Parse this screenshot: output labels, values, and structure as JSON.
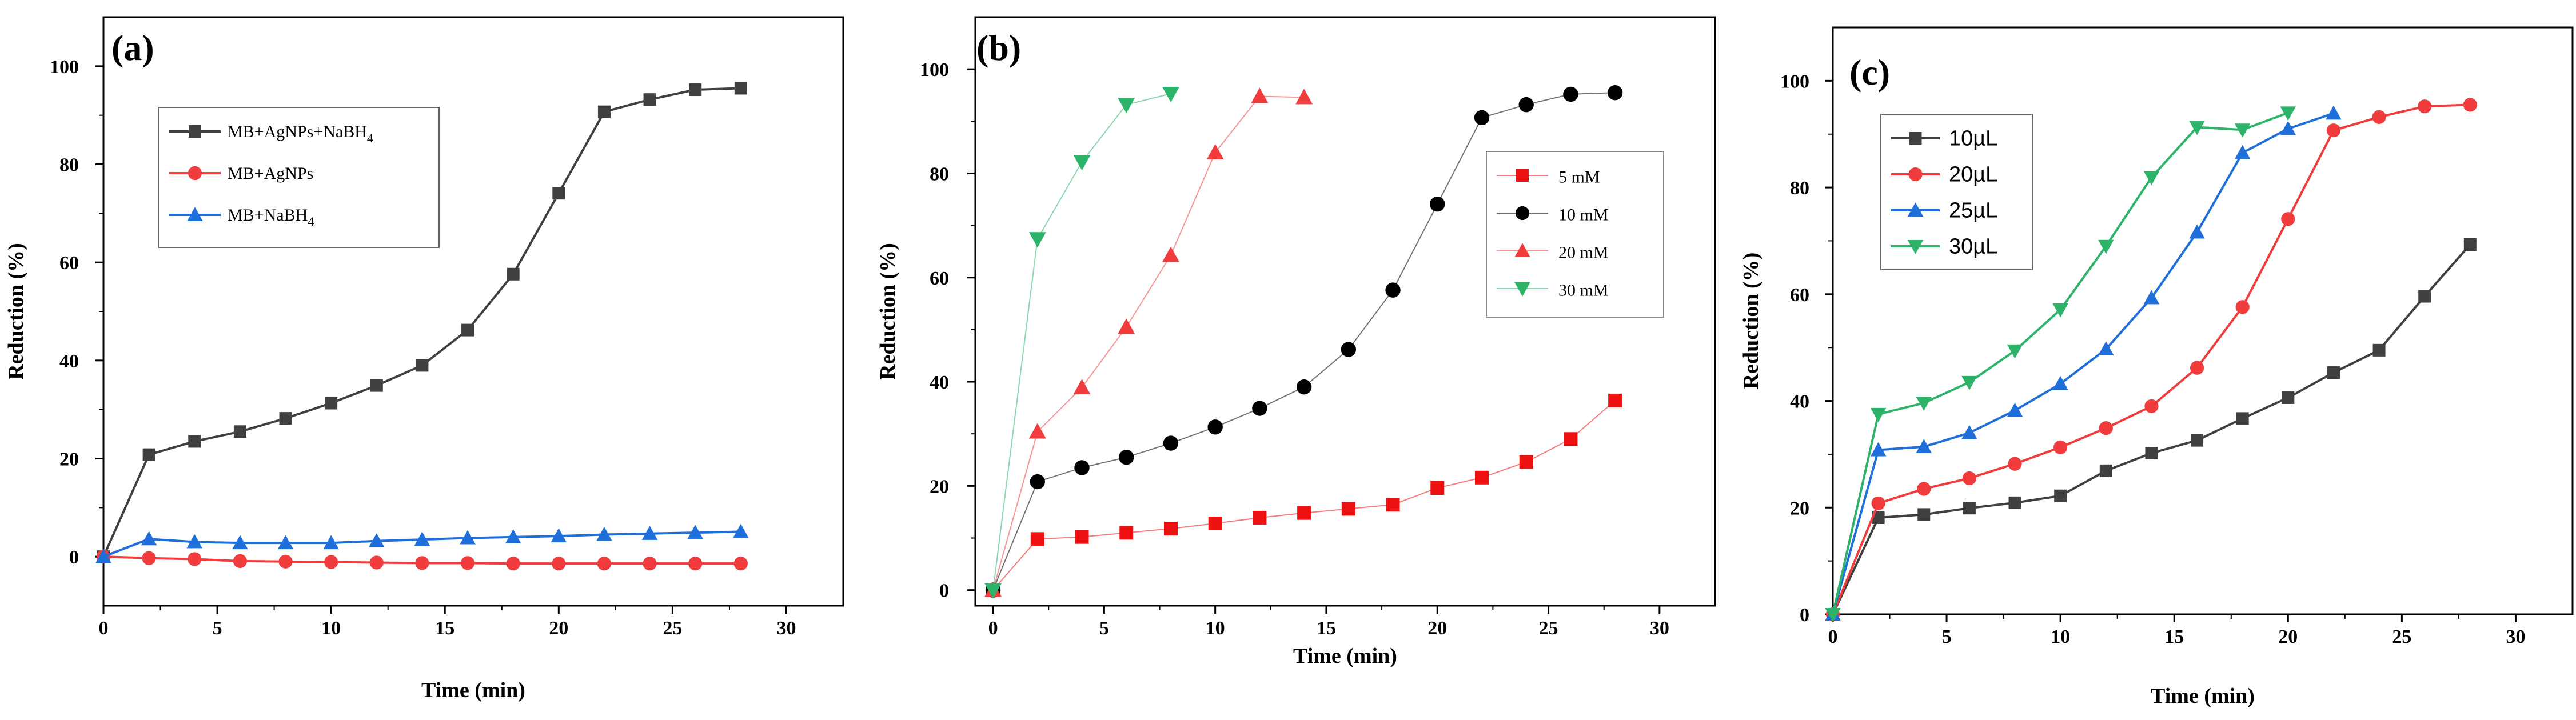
{
  "chart_data": [
    {
      "panel": "(a)",
      "type": "line",
      "xlabel": "Time (min)",
      "ylabel": "Reduction (%)",
      "xlim": [
        0,
        32.5
      ],
      "ylim": [
        -10,
        110
      ],
      "xticks": [
        0,
        5,
        10,
        15,
        20,
        25,
        30
      ],
      "yticks": [
        0,
        20,
        40,
        60,
        80,
        100
      ],
      "legend_position": "upper-left",
      "series": [
        {
          "name": "MB+AgNPs+NaBH",
          "subscript": "4",
          "color": "#404040",
          "marker": "square",
          "x": [
            0,
            2,
            4,
            6,
            8,
            10,
            12,
            14,
            16,
            18,
            20,
            22,
            24,
            26,
            28
          ],
          "y": [
            0,
            20.8,
            23.5,
            25.5,
            28.2,
            31.3,
            34.9,
            39.0,
            46.2,
            57.6,
            74.1,
            90.7,
            93.2,
            95.2,
            95.5
          ]
        },
        {
          "name": "MB+AgNPs",
          "subscript": "",
          "color": "#f03c3c",
          "marker": "circle",
          "x": [
            0,
            2,
            4,
            6,
            8,
            10,
            12,
            14,
            16,
            18,
            20,
            22,
            24,
            26,
            28
          ],
          "y": [
            0,
            -0.3,
            -0.5,
            -0.9,
            -1.0,
            -1.1,
            -1.2,
            -1.3,
            -1.3,
            -1.4,
            -1.4,
            -1.4,
            -1.4,
            -1.4,
            -1.4
          ]
        },
        {
          "name": "MB+NaBH",
          "subscript": "4",
          "color": "#1f6fdb",
          "marker": "triangle-up",
          "x": [
            0,
            2,
            4,
            6,
            8,
            10,
            12,
            14,
            16,
            18,
            20,
            22,
            24,
            26,
            28
          ],
          "y": [
            0,
            3.6,
            3.0,
            2.8,
            2.8,
            2.8,
            3.2,
            3.5,
            3.8,
            4.0,
            4.2,
            4.5,
            4.7,
            4.9,
            5.1
          ]
        }
      ]
    },
    {
      "panel": "(b)",
      "type": "line",
      "xlabel": "Time (min)",
      "ylabel": "Reduction (%)",
      "xlim": [
        -0.8,
        32.5
      ],
      "ylim": [
        -3,
        110
      ],
      "xticks": [
        0,
        5,
        10,
        15,
        20,
        25,
        30
      ],
      "yticks": [
        0,
        20,
        40,
        60,
        80,
        100
      ],
      "legend_position": "right",
      "series": [
        {
          "name": "5 mM",
          "color": "#ee1111",
          "marker": "square",
          "x": [
            0,
            2,
            4,
            6,
            8,
            10,
            12,
            14,
            16,
            18,
            20,
            22,
            24,
            26,
            28
          ],
          "y": [
            0,
            9.8,
            10.2,
            11.0,
            11.8,
            12.8,
            13.9,
            14.8,
            15.6,
            16.4,
            19.6,
            21.6,
            24.6,
            29.0,
            36.4
          ]
        },
        {
          "name": "10 mM",
          "color": "#000000",
          "marker": "circle",
          "x": [
            0,
            2,
            4,
            6,
            8,
            10,
            12,
            14,
            16,
            18,
            20,
            22,
            24,
            26,
            28
          ],
          "y": [
            0,
            20.8,
            23.5,
            25.5,
            28.2,
            31.3,
            34.9,
            39.0,
            46.2,
            57.6,
            74.1,
            90.7,
            93.2,
            95.2,
            95.5
          ]
        },
        {
          "name": "20 mM",
          "color": "#f03c3c",
          "marker": "triangle-up",
          "x": [
            0,
            2,
            4,
            6,
            8,
            10,
            12,
            14
          ],
          "y": [
            0,
            30.4,
            38.9,
            50.5,
            64.3,
            84.0,
            94.8,
            94.6
          ]
        },
        {
          "name": "30 mM",
          "color": "#2db36a",
          "marker": "triangle-down",
          "x": [
            0,
            2,
            4,
            6,
            8
          ],
          "y": [
            0,
            67.4,
            82.2,
            93.2,
            95.3
          ]
        }
      ]
    },
    {
      "panel": "(c)",
      "type": "line",
      "xlabel": "Time (min)",
      "ylabel": "Reduction (%)",
      "xlim": [
        0,
        32.5
      ],
      "ylim": [
        0,
        110
      ],
      "xticks": [
        0,
        5,
        10,
        15,
        20,
        25,
        30
      ],
      "yticks": [
        0,
        20,
        40,
        60,
        80,
        100
      ],
      "legend_position": "upper-left",
      "series": [
        {
          "name": "10µL",
          "color": "#404040",
          "marker": "square",
          "x": [
            0,
            2,
            4,
            6,
            8,
            10,
            12,
            14,
            16,
            18,
            20,
            22,
            24,
            26,
            28
          ],
          "y": [
            0,
            18.1,
            18.7,
            19.9,
            20.9,
            22.2,
            26.9,
            30.2,
            32.6,
            36.7,
            40.6,
            45.3,
            49.5,
            59.6,
            69.3
          ]
        },
        {
          "name": "20µL",
          "color": "#f03c3c",
          "marker": "circle",
          "x": [
            0,
            2,
            4,
            6,
            8,
            10,
            12,
            14,
            16,
            18,
            20,
            22,
            24,
            26,
            28
          ],
          "y": [
            0,
            20.8,
            23.5,
            25.5,
            28.2,
            31.3,
            34.9,
            39.0,
            46.2,
            57.6,
            74.1,
            90.7,
            93.2,
            95.2,
            95.5
          ]
        },
        {
          "name": "25µL",
          "color": "#1f6fdb",
          "marker": "triangle-up",
          "x": [
            0,
            2,
            4,
            6,
            8,
            10,
            12,
            14,
            16,
            18,
            20,
            22
          ],
          "y": [
            0,
            30.8,
            31.4,
            34.0,
            38.2,
            43.2,
            49.7,
            59.3,
            71.6,
            86.5,
            91.0,
            93.9
          ]
        },
        {
          "name": "30µL",
          "color": "#2db36a",
          "marker": "triangle-down",
          "x": [
            0,
            2,
            4,
            6,
            8,
            10,
            12,
            14,
            16,
            18,
            20
          ],
          "y": [
            0,
            37.5,
            39.6,
            43.5,
            49.4,
            57.1,
            69.0,
            81.9,
            91.3,
            90.8,
            94.0
          ]
        }
      ]
    }
  ]
}
